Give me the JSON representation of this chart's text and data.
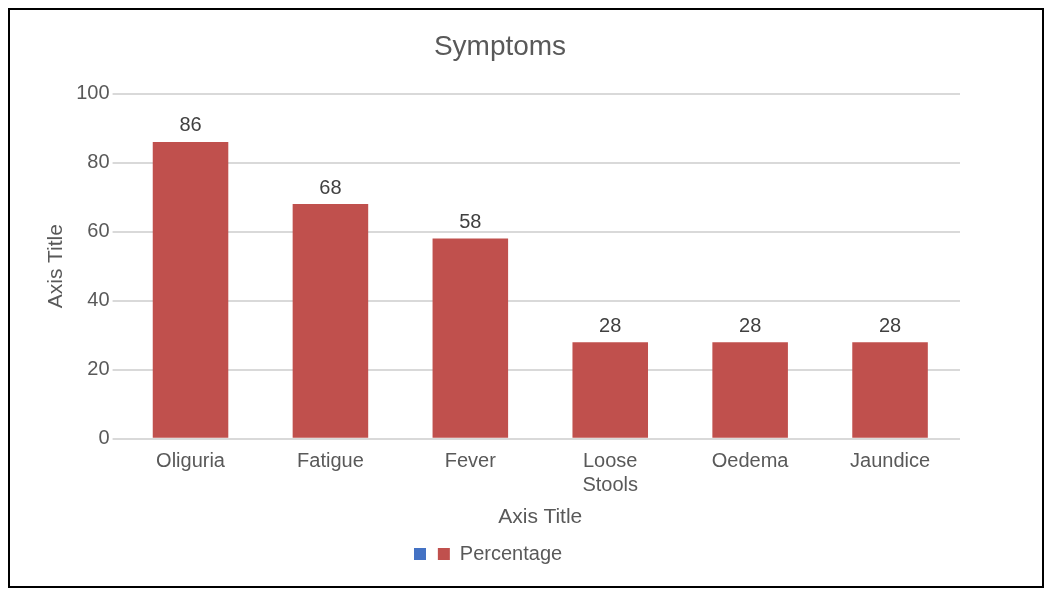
{
  "chart_data": {
    "type": "bar",
    "title": "Symptoms",
    "xlabel": "Axis Title",
    "ylabel": "Axis Title",
    "categories": [
      "Oliguria",
      "Fatigue",
      "Fever",
      "Loose Stools",
      "Oedema",
      "Jaundice"
    ],
    "series": [
      {
        "name": "Percentage",
        "color": "#c0504d",
        "values": [
          86,
          68,
          58,
          28,
          28,
          28
        ]
      }
    ],
    "ylim": [
      0,
      100
    ],
    "yticks": [
      0,
      20,
      40,
      60,
      80,
      100
    ],
    "grid": "y",
    "data_labels": true,
    "legend": "bottom"
  }
}
